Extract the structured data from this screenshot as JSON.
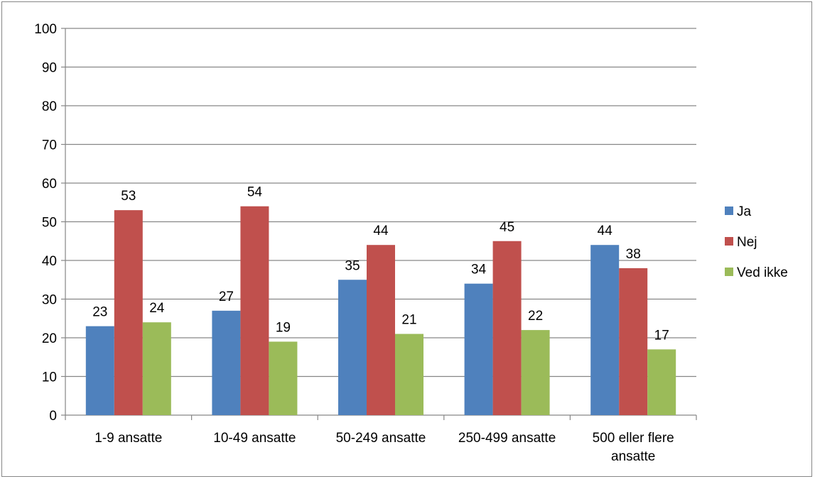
{
  "chart_data": {
    "type": "bar",
    "title": "",
    "xlabel": "",
    "ylabel": "",
    "ylim": [
      0,
      100
    ],
    "yticks": [
      0,
      10,
      20,
      30,
      40,
      50,
      60,
      70,
      80,
      90,
      100
    ],
    "grid": true,
    "legend_position": "right",
    "categories": [
      [
        "1-9 ansatte"
      ],
      [
        "10-49 ansatte"
      ],
      [
        "50-249 ansatte"
      ],
      [
        "250-499 ansatte"
      ],
      [
        "500 eller flere",
        "ansatte"
      ]
    ],
    "series": [
      {
        "name": "Ja",
        "color": "#4f81bd",
        "values": [
          23,
          27,
          35,
          34,
          44
        ]
      },
      {
        "name": "Nej",
        "color": "#c0504d",
        "values": [
          53,
          54,
          44,
          45,
          38
        ]
      },
      {
        "name": "Ved ikke",
        "color": "#9bbb59",
        "values": [
          24,
          19,
          21,
          22,
          17
        ]
      }
    ]
  }
}
